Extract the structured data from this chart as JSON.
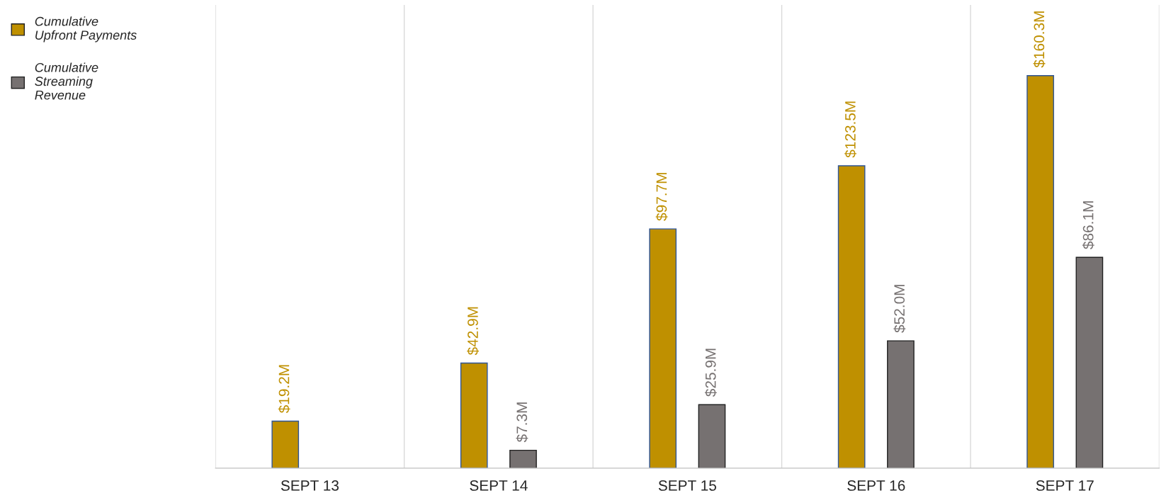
{
  "chart_data": {
    "type": "bar",
    "categories": [
      "SEPT 13",
      "SEPT 14",
      "SEPT 15",
      "SEPT 16",
      "SEPT 17"
    ],
    "series": [
      {
        "name": "Cumulative\nUpfront Payments",
        "color": "#bf9000",
        "values": [
          19.2,
          42.9,
          97.7,
          123.5,
          160.3
        ],
        "value_labels": [
          "$19.2M",
          "$42.9M",
          "$97.7M",
          "$123.5M",
          "$160.3M"
        ]
      },
      {
        "name": "Cumulative\nStreaming\nRevenue",
        "color": "#767171",
        "values": [
          null,
          7.3,
          25.9,
          52.0,
          86.1
        ],
        "value_labels": [
          null,
          "$7.3M",
          "$25.9M",
          "$52.0M",
          "$86.1M"
        ]
      }
    ],
    "grid": "x",
    "legend": "top left",
    "tick_labels": "x"
  }
}
